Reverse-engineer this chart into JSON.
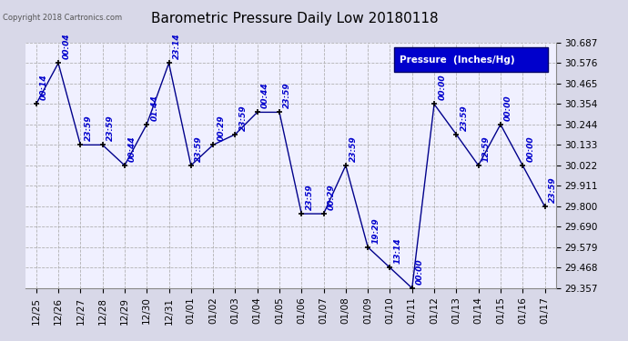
{
  "title": "Barometric Pressure Daily Low 20180118",
  "copyright_text": "Copyright 2018 Cartronics.com",
  "legend_label": "Pressure  (Inches/Hg)",
  "background_color": "#d8d8e8",
  "plot_bg_color": "#f0f0ff",
  "line_color": "#00008b",
  "marker_color": "#000000",
  "annotation_color": "#0000cc",
  "grid_color": "#aaaaaa",
  "legend_bg_color": "#0000cc",
  "legend_text_color": "#ffffff",
  "ylim_min": 29.357,
  "ylim_max": 30.687,
  "yticks": [
    29.357,
    29.468,
    29.579,
    29.69,
    29.8,
    29.911,
    30.022,
    30.133,
    30.244,
    30.354,
    30.465,
    30.576,
    30.687
  ],
  "dates": [
    "12/25",
    "12/26",
    "12/27",
    "12/28",
    "12/29",
    "12/30",
    "12/31",
    "01/01",
    "01/02",
    "01/03",
    "01/04",
    "01/05",
    "01/06",
    "01/07",
    "01/08",
    "01/09",
    "01/10",
    "01/11",
    "01/12",
    "01/13",
    "01/14",
    "01/15",
    "01/16",
    "01/17"
  ],
  "values": [
    30.354,
    30.576,
    30.133,
    30.133,
    30.022,
    30.244,
    30.576,
    30.022,
    30.133,
    30.19,
    30.31,
    30.31,
    29.76,
    29.76,
    30.022,
    29.579,
    29.468,
    29.357,
    30.354,
    30.19,
    30.022,
    30.244,
    30.022,
    29.8
  ],
  "annotations": [
    "00:14",
    "00:04",
    "23:59",
    "23:59",
    "00:44",
    "01:44",
    "23:14",
    "23:59",
    "00:29",
    "23:59",
    "00:44",
    "23:59",
    "23:59",
    "00:29",
    "23:59",
    "19:29",
    "13:14",
    "00:00",
    "00:00",
    "23:59",
    "12:59",
    "00:00",
    "00:00",
    "23:59"
  ],
  "title_fontsize": 11,
  "annot_fontsize": 6.5,
  "tick_fontsize": 7.5,
  "copy_fontsize": 6
}
